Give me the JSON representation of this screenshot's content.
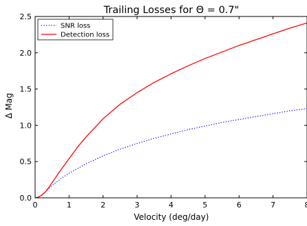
{
  "chart_data": {
    "type": "line",
    "title": "Trailing Losses for Θ = 0.7\"",
    "xlabel": "Velocity (deg/day)",
    "ylabel": "Δ Mag",
    "xlim": [
      0,
      8
    ],
    "ylim": [
      0,
      2.5
    ],
    "xticks": [
      "0",
      "1",
      "2",
      "3",
      "4",
      "5",
      "6",
      "7",
      "8"
    ],
    "yticks": [
      "0.0",
      "0.5",
      "1.0",
      "1.5",
      "2.0",
      "2.5"
    ],
    "grid": false,
    "legend_position": "top-left",
    "series": [
      {
        "name": "SNR loss",
        "color": "#0000ff",
        "style": "dotted",
        "x": [
          0,
          0.1,
          0.2,
          0.3,
          0.4,
          0.5,
          0.75,
          1,
          1.5,
          2,
          2.5,
          3,
          3.5,
          4,
          4.5,
          5,
          5.5,
          6,
          6.5,
          7,
          7.5,
          8
        ],
        "y": [
          0,
          0.01,
          0.04,
          0.08,
          0.13,
          0.17,
          0.26,
          0.34,
          0.47,
          0.58,
          0.67,
          0.75,
          0.82,
          0.88,
          0.94,
          0.99,
          1.04,
          1.08,
          1.12,
          1.16,
          1.2,
          1.23
        ]
      },
      {
        "name": "Detection loss",
        "color": "#ff0000",
        "style": "solid",
        "x": [
          0,
          0.1,
          0.2,
          0.3,
          0.4,
          0.5,
          0.75,
          1,
          1.25,
          1.5,
          2,
          2.5,
          3,
          3.5,
          4,
          4.5,
          5,
          5.5,
          6,
          6.5,
          7,
          7.5,
          8
        ],
        "y": [
          0,
          0.01,
          0.04,
          0.08,
          0.14,
          0.21,
          0.38,
          0.54,
          0.7,
          0.84,
          1.09,
          1.29,
          1.45,
          1.59,
          1.71,
          1.82,
          1.92,
          2.01,
          2.1,
          2.18,
          2.26,
          2.34,
          2.41
        ]
      }
    ]
  }
}
